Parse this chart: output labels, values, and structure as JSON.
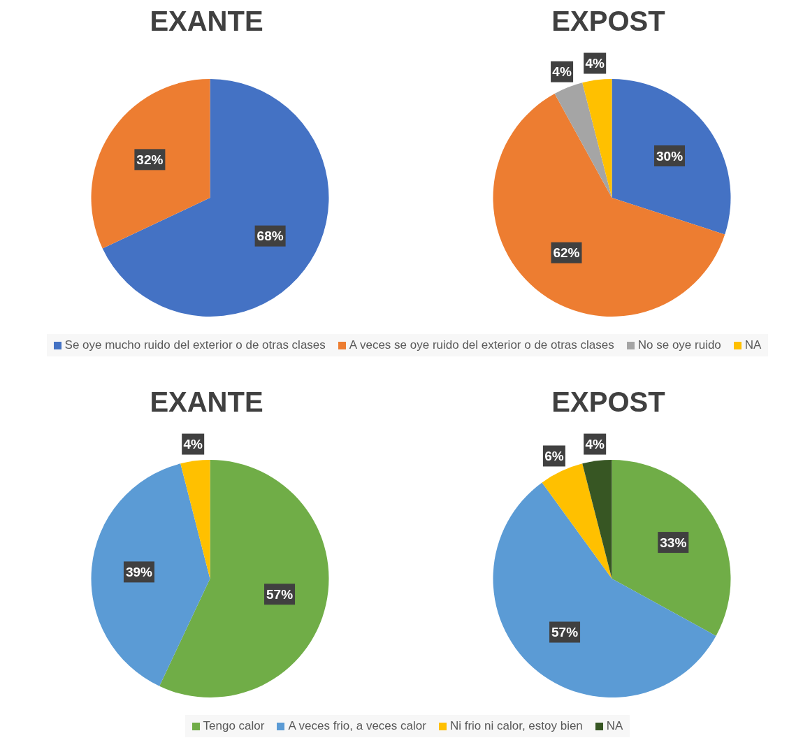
{
  "chart_data": [
    {
      "type": "pie",
      "title": "EXANTE",
      "categories": [
        null,
        null
      ],
      "values": [
        68,
        32
      ],
      "colors": [
        "#4472c4",
        "#ed7d31"
      ],
      "value_labels": [
        "68%",
        "32%"
      ]
    },
    {
      "type": "pie",
      "title": "EXPOST",
      "categories": [
        "Se oye mucho ruido del exterior o de otras clases",
        "A veces se oye ruido del exterior o de otras clases",
        "No se oye ruido",
        "NA"
      ],
      "values": [
        30,
        62,
        4,
        4
      ],
      "colors": [
        "#4472c4",
        "#ed7d31",
        "#a5a5a5",
        "#ffc000"
      ],
      "value_labels": [
        "30%",
        "62%",
        "4%",
        "4%"
      ],
      "legend": "bottom"
    },
    {
      "type": "pie",
      "title": "EXANTE",
      "categories": [
        null,
        null,
        null
      ],
      "values": [
        57,
        39,
        4
      ],
      "colors": [
        "#70ad47",
        "#5b9bd5",
        "#ffc000"
      ],
      "value_labels": [
        "57%",
        "39%",
        "4%"
      ]
    },
    {
      "type": "pie",
      "title": "EXPOST",
      "categories": [
        "Tengo calor",
        "A veces frio, a veces calor",
        "Ni frio ni calor, estoy bien",
        "NA"
      ],
      "values": [
        33,
        57,
        6,
        4
      ],
      "colors": [
        "#70ad47",
        "#5b9bd5",
        "#ffc000",
        "#375623"
      ],
      "value_labels": [
        "33%",
        "57%",
        "6%",
        "4%"
      ],
      "legend": "bottom"
    }
  ]
}
